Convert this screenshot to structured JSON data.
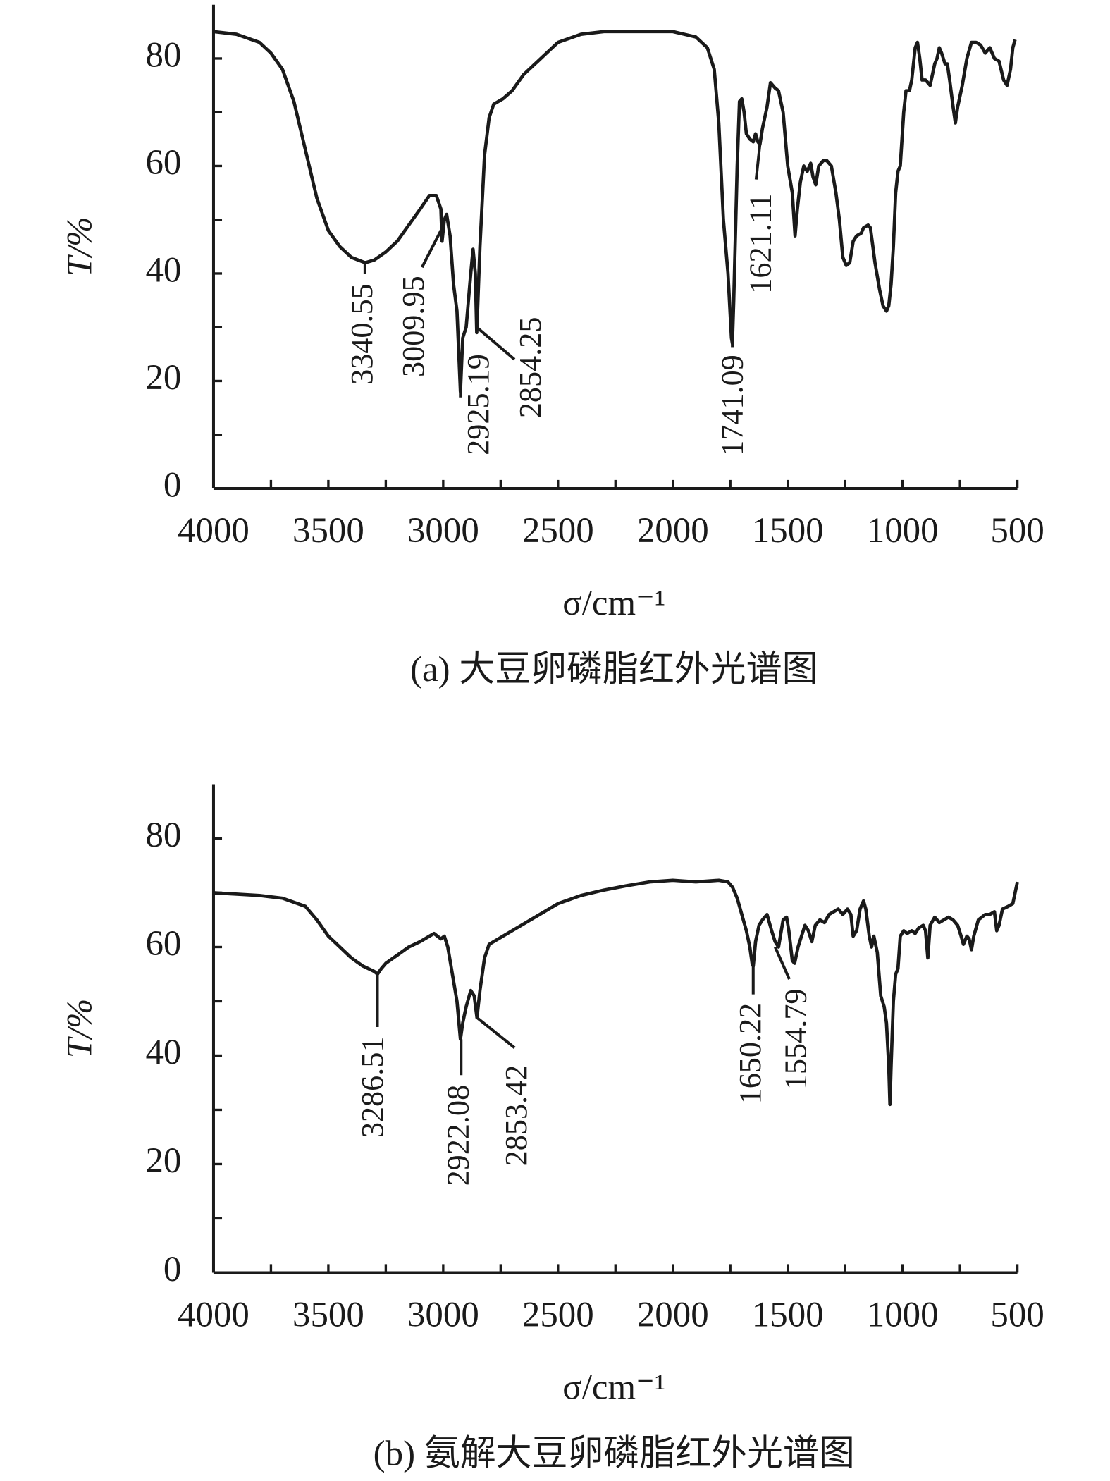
{
  "chart_data": [
    {
      "type": "line",
      "color": "#1a1a1a",
      "xlabel": "σ/cm⁻¹",
      "ylabel": "T/%",
      "caption": "(a) 大豆卵磷脂红外光谱图",
      "xlim": [
        4000,
        500
      ],
      "ylim": [
        0,
        90
      ],
      "xticks": [
        4000,
        3500,
        3000,
        2500,
        2000,
        1500,
        1000,
        500
      ],
      "yticks": [
        0,
        20,
        40,
        60,
        80
      ],
      "xminor": [
        3750,
        3250,
        2750,
        2250,
        1750,
        1250,
        750
      ],
      "yminor": [
        10,
        30,
        50,
        70
      ],
      "x": [
        4000,
        3900,
        3800,
        3750,
        3700,
        3650,
        3600,
        3550,
        3500,
        3450,
        3400,
        3340,
        3300,
        3250,
        3200,
        3150,
        3100,
        3060,
        3030,
        3010,
        3005,
        2995,
        2985,
        2970,
        2955,
        2940,
        2925,
        2915,
        2900,
        2880,
        2870,
        2860,
        2854,
        2840,
        2820,
        2800,
        2780,
        2740,
        2700,
        2650,
        2600,
        2550,
        2500,
        2400,
        2300,
        2200,
        2100,
        2000,
        1950,
        1900,
        1850,
        1820,
        1800,
        1780,
        1760,
        1745,
        1741,
        1735,
        1720,
        1710,
        1700,
        1690,
        1680,
        1665,
        1650,
        1640,
        1630,
        1621,
        1610,
        1590,
        1575,
        1555,
        1540,
        1520,
        1500,
        1480,
        1468,
        1458,
        1445,
        1430,
        1415,
        1400,
        1390,
        1378,
        1365,
        1345,
        1330,
        1310,
        1290,
        1275,
        1260,
        1245,
        1230,
        1215,
        1200,
        1180,
        1170,
        1150,
        1140,
        1120,
        1100,
        1085,
        1070,
        1060,
        1050,
        1040,
        1030,
        1020,
        1010,
        995,
        985,
        970,
        960,
        945,
        935,
        925,
        915,
        900,
        880,
        870,
        860,
        850,
        840,
        830,
        815,
        805,
        795,
        780,
        770,
        760,
        740,
        720,
        700,
        680,
        660,
        640,
        620,
        600,
        580,
        560,
        545,
        530,
        520,
        510
      ],
      "values": [
        85,
        84.5,
        83,
        81,
        78,
        72,
        63,
        54,
        48,
        45,
        43,
        42,
        42.5,
        44,
        46,
        49,
        52,
        54.5,
        54.5,
        52,
        46,
        50,
        51,
        47,
        38,
        33,
        18,
        28,
        30,
        40,
        44.5,
        40,
        29,
        45,
        62,
        69,
        71.5,
        72.5,
        74,
        77,
        79,
        81,
        83,
        84.5,
        85,
        85,
        85,
        85,
        84.5,
        84,
        82,
        78,
        68,
        50,
        40,
        28,
        27,
        35,
        60,
        72,
        72.5,
        70,
        66,
        65,
        64.5,
        66,
        64.5,
        64,
        67,
        71,
        75.5,
        74.5,
        74,
        70,
        60,
        55,
        47,
        52,
        57,
        60,
        59,
        60.5,
        58,
        56.5,
        60,
        61,
        61,
        60,
        55,
        50,
        43,
        41.5,
        42,
        46,
        47,
        47.5,
        48.5,
        49,
        48.5,
        42,
        37,
        34,
        33,
        34,
        38,
        45,
        55,
        59,
        60,
        70,
        74,
        74,
        76,
        82,
        83,
        80,
        76,
        76,
        75,
        77,
        79,
        80,
        82,
        81,
        79,
        79,
        76,
        71,
        68,
        71,
        75,
        80,
        83,
        83,
        82.5,
        81,
        82,
        80,
        79.5,
        76,
        75,
        78,
        82,
        83.5
      ],
      "annotations": [
        {
          "label": "3340.55",
          "x": 3340.55,
          "y": 42
        },
        {
          "label": "3009.95",
          "x": 3009.95,
          "y": 48
        },
        {
          "label": "2925.19",
          "x": 2925.19,
          "y": 18
        },
        {
          "label": "2854.25",
          "x": 2854.25,
          "y": 30
        },
        {
          "label": "1741.09",
          "x": 1741.09,
          "y": 27
        },
        {
          "label": "1621.11",
          "x": 1621.11,
          "y": 64
        }
      ]
    },
    {
      "type": "line",
      "color": "#1a1a1a",
      "xlabel": "σ/cm⁻¹",
      "ylabel": "T/%",
      "caption": "(b) 氨解大豆卵磷脂红外光谱图",
      "xlim": [
        4000,
        500
      ],
      "ylim": [
        0,
        90
      ],
      "xticks": [
        4000,
        3500,
        3000,
        2500,
        2000,
        1500,
        1000,
        500
      ],
      "yticks": [
        0,
        20,
        40,
        60,
        80
      ],
      "xminor": [
        3750,
        3250,
        2750,
        2250,
        1750,
        1250,
        750
      ],
      "yminor": [
        10,
        30,
        50,
        70
      ],
      "x": [
        4000,
        3800,
        3700,
        3600,
        3550,
        3500,
        3450,
        3400,
        3350,
        3300,
        3286,
        3270,
        3250,
        3200,
        3150,
        3100,
        3060,
        3040,
        3010,
        2995,
        2980,
        2960,
        2940,
        2925,
        2915,
        2900,
        2880,
        2865,
        2853,
        2840,
        2820,
        2800,
        2700,
        2600,
        2500,
        2400,
        2300,
        2200,
        2100,
        2000,
        1900,
        1800,
        1760,
        1740,
        1720,
        1700,
        1680,
        1665,
        1655,
        1650,
        1640,
        1625,
        1610,
        1590,
        1570,
        1555,
        1540,
        1520,
        1505,
        1495,
        1480,
        1470,
        1455,
        1440,
        1425,
        1410,
        1395,
        1380,
        1360,
        1340,
        1320,
        1300,
        1280,
        1260,
        1240,
        1225,
        1215,
        1200,
        1185,
        1170,
        1160,
        1145,
        1135,
        1125,
        1110,
        1095,
        1080,
        1070,
        1060,
        1055,
        1050,
        1040,
        1030,
        1020,
        1010,
        995,
        980,
        960,
        945,
        930,
        910,
        900,
        890,
        880,
        860,
        840,
        820,
        800,
        780,
        760,
        745,
        735,
        720,
        710,
        700,
        690,
        670,
        640,
        620,
        600,
        590,
        580,
        565,
        540,
        520,
        505,
        500
      ],
      "values": [
        70,
        69.5,
        69,
        67.5,
        65,
        62,
        60,
        58,
        56.5,
        55.5,
        55,
        56,
        57,
        58.5,
        60,
        61,
        62,
        62.5,
        61.5,
        62,
        60,
        55,
        50,
        43,
        46,
        49,
        52,
        51,
        47,
        52,
        58,
        60.5,
        63,
        65.5,
        68,
        69.5,
        70.5,
        71.3,
        72,
        72.3,
        72,
        72.3,
        72,
        71,
        69,
        66,
        63,
        60,
        57,
        56.5,
        61,
        64,
        65,
        66,
        63,
        61,
        60,
        65,
        65.5,
        63,
        57.5,
        57,
        60,
        62,
        64,
        63,
        61,
        64,
        65,
        64.5,
        66,
        66.5,
        67,
        66,
        67,
        66,
        62,
        63,
        67,
        68.5,
        67,
        62,
        60,
        62,
        59,
        51,
        49,
        46,
        38,
        31,
        38,
        50,
        55,
        56,
        62,
        63,
        62.5,
        63,
        62.5,
        63.5,
        64,
        63,
        58,
        64,
        65.5,
        64.5,
        65,
        65.5,
        65,
        64,
        62,
        60.5,
        62,
        61.5,
        59.5,
        62,
        65,
        66,
        66,
        66.5,
        63,
        64,
        67,
        67.5,
        68,
        71,
        72
      ],
      "annotations": [
        {
          "label": "3286.51",
          "x": 3286.51,
          "y": 55
        },
        {
          "label": "2922.08",
          "x": 2922.08,
          "y": 43
        },
        {
          "label": "2853.42",
          "x": 2853.42,
          "y": 47
        },
        {
          "label": "1650.22",
          "x": 1650.22,
          "y": 56.5
        },
        {
          "label": "1554.79",
          "x": 1554.79,
          "y": 60
        }
      ]
    }
  ]
}
